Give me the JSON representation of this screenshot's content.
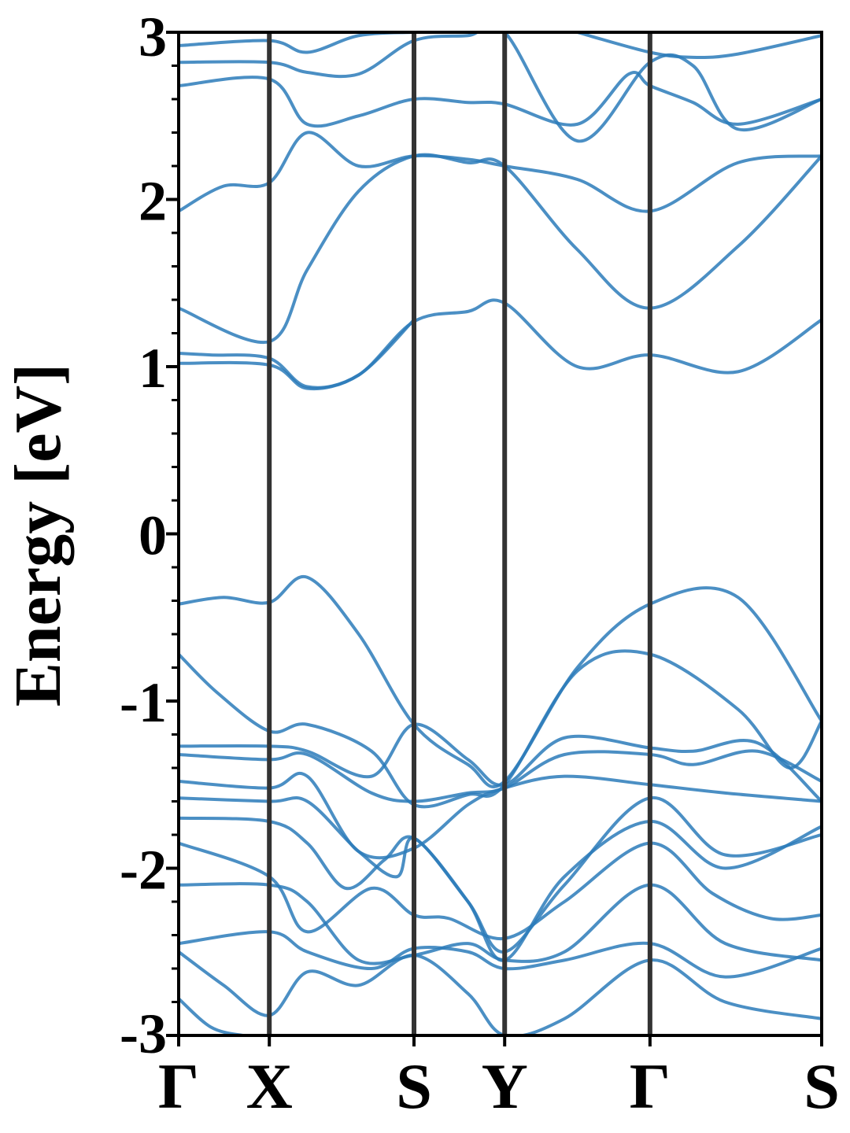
{
  "chart_data": {
    "type": "line",
    "title": "",
    "xlabel": "",
    "ylabel": "Energy [eV]",
    "ylim": [
      -3,
      3
    ],
    "grid": false,
    "line_color": "#2b7bba",
    "kpath": [
      {
        "label": "Γ",
        "x": 0.0
      },
      {
        "label": "X",
        "x": 0.141
      },
      {
        "label": "S",
        "x": 0.366
      },
      {
        "label": "Y",
        "x": 0.507
      },
      {
        "label": "Γ",
        "x": 0.733
      },
      {
        "label": "S",
        "x": 1.0
      }
    ],
    "yticks": [
      {
        "label": "3",
        "value": 3
      },
      {
        "label": "2",
        "value": 2
      },
      {
        "label": "1",
        "value": 1
      },
      {
        "label": "0",
        "value": 0
      },
      {
        "label": "-1",
        "value": -1
      },
      {
        "label": "-2",
        "value": -2
      },
      {
        "label": "-3",
        "value": -3
      }
    ],
    "series": [
      {
        "x": [
          0,
          0.07,
          0.141,
          0.2,
          0.28,
          0.366,
          0.45,
          0.507,
          0.62,
          0.733,
          0.87,
          1.0
        ],
        "y": [
          -0.42,
          -0.38,
          -0.41,
          -0.26,
          -0.6,
          -1.14,
          -1.38,
          -1.48,
          -0.8,
          -0.42,
          -0.38,
          -1.12
        ]
      },
      {
        "x": [
          0,
          0.06,
          0.141,
          0.2,
          0.3,
          0.366,
          0.45,
          0.507,
          0.62,
          0.733,
          0.87,
          0.95,
          1.0
        ],
        "y": [
          -0.72,
          -0.95,
          -1.18,
          -1.14,
          -1.3,
          -1.62,
          -1.56,
          -1.5,
          -0.82,
          -0.72,
          -1.05,
          -1.4,
          -1.12
        ]
      },
      {
        "x": [
          0,
          0.141,
          0.2,
          0.3,
          0.366,
          0.45,
          0.507,
          0.6,
          0.733,
          0.8,
          0.9,
          1.0
        ],
        "y": [
          -1.27,
          -1.27,
          -1.3,
          -1.45,
          -1.14,
          -1.35,
          -1.5,
          -1.22,
          -1.28,
          -1.3,
          -1.25,
          -1.6
        ]
      },
      {
        "x": [
          0,
          0.141,
          0.2,
          0.3,
          0.366,
          0.45,
          0.507,
          0.6,
          0.733,
          0.8,
          0.9,
          1.0
        ],
        "y": [
          -1.32,
          -1.35,
          -1.32,
          -1.55,
          -1.6,
          -1.55,
          -1.52,
          -1.32,
          -1.32,
          -1.38,
          -1.3,
          -1.48
        ]
      },
      {
        "x": [
          0,
          0.141,
          0.2,
          0.28,
          0.366,
          0.45,
          0.507,
          0.6,
          0.733,
          0.85,
          1.0
        ],
        "y": [
          -1.48,
          -1.52,
          -1.45,
          -1.9,
          -1.88,
          -1.62,
          -1.52,
          -1.45,
          -1.5,
          -1.55,
          -1.6
        ]
      },
      {
        "x": [
          0,
          0.141,
          0.2,
          0.28,
          0.34,
          0.366,
          0.45,
          0.507,
          0.6,
          0.733,
          0.85,
          1.0
        ],
        "y": [
          -1.58,
          -1.6,
          -1.6,
          -1.9,
          -2.05,
          -1.82,
          -2.2,
          -2.5,
          -2.1,
          -1.58,
          -1.92,
          -1.8
        ]
      },
      {
        "x": [
          0,
          0.141,
          0.2,
          0.26,
          0.32,
          0.366,
          0.45,
          0.507,
          0.6,
          0.733,
          0.85,
          1.0
        ],
        "y": [
          -1.7,
          -1.72,
          -1.85,
          -2.12,
          -1.95,
          -1.82,
          -2.2,
          -2.55,
          -2.05,
          -1.72,
          -2.0,
          -1.75
        ]
      },
      {
        "x": [
          0,
          0.141,
          0.2,
          0.3,
          0.366,
          0.42,
          0.507,
          0.6,
          0.733,
          0.83,
          0.92,
          1.0
        ],
        "y": [
          -1.85,
          -2.05,
          -2.38,
          -2.12,
          -2.28,
          -2.3,
          -2.42,
          -2.2,
          -1.85,
          -2.15,
          -2.3,
          -2.28
        ]
      },
      {
        "x": [
          0,
          0.141,
          0.2,
          0.28,
          0.366,
          0.45,
          0.507,
          0.6,
          0.733,
          0.85,
          1.0
        ],
        "y": [
          -2.1,
          -2.1,
          -2.2,
          -2.55,
          -2.52,
          -2.45,
          -2.55,
          -2.5,
          -2.1,
          -2.45,
          -2.55
        ]
      },
      {
        "x": [
          0,
          0.141,
          0.2,
          0.3,
          0.366,
          0.45,
          0.507,
          0.6,
          0.733,
          0.85,
          1.0
        ],
        "y": [
          -2.45,
          -2.38,
          -2.5,
          -2.6,
          -2.48,
          -2.5,
          -2.6,
          -2.55,
          -2.45,
          -2.65,
          -2.48
        ]
      },
      {
        "x": [
          0,
          0.07,
          0.141,
          0.2,
          0.28,
          0.366,
          0.45,
          0.507,
          0.6,
          0.733,
          0.85,
          1.0
        ],
        "y": [
          -2.5,
          -2.7,
          -2.88,
          -2.62,
          -2.7,
          -2.52,
          -2.75,
          -3.0,
          -2.9,
          -2.55,
          -2.8,
          -2.9
        ]
      },
      {
        "x": [
          0,
          0.05,
          0.1,
          0.13
        ],
        "y": [
          -2.78,
          -2.95,
          -3.0,
          -3.0
        ]
      },
      {
        "x": [
          0,
          0.05,
          0.141,
          0.2,
          0.28,
          0.366
        ],
        "y": [
          1.08,
          1.07,
          1.05,
          0.88,
          0.95,
          1.28
        ]
      },
      {
        "x": [
          0,
          0.141,
          0.2,
          0.28,
          0.366,
          0.45,
          0.507,
          0.62,
          0.733,
          0.87,
          1.0
        ],
        "y": [
          1.02,
          1.01,
          0.87,
          0.95,
          1.27,
          1.33,
          1.38,
          1.0,
          1.07,
          0.97,
          1.28
        ]
      },
      {
        "x": [
          0,
          0.141,
          0.2,
          0.28,
          0.366,
          0.45,
          0.507,
          0.62,
          0.733,
          0.87,
          1.0
        ],
        "y": [
          1.35,
          1.15,
          1.58,
          2.05,
          2.26,
          2.22,
          2.2,
          1.7,
          1.35,
          1.72,
          2.26
        ]
      },
      {
        "x": [
          0,
          0.07,
          0.141,
          0.2,
          0.28,
          0.366,
          0.45,
          0.507,
          0.62,
          0.733,
          0.87,
          1.0
        ],
        "y": [
          1.93,
          2.08,
          2.1,
          2.4,
          2.2,
          2.26,
          2.24,
          2.2,
          2.12,
          1.93,
          2.22,
          2.26
        ]
      },
      {
        "x": [
          0,
          0.141,
          0.2,
          0.28,
          0.366,
          0.45,
          0.507,
          0.62,
          0.7,
          0.733,
          0.8,
          0.87,
          1.0
        ],
        "y": [
          2.68,
          2.72,
          2.45,
          2.5,
          2.6,
          2.58,
          2.57,
          2.45,
          2.75,
          2.68,
          2.58,
          2.45,
          2.6
        ]
      },
      {
        "x": [
          0,
          0.141,
          0.2,
          0.28,
          0.366,
          0.45,
          0.507,
          0.62,
          0.733,
          0.8,
          0.87,
          1.0
        ],
        "y": [
          2.82,
          2.82,
          2.76,
          2.75,
          2.95,
          2.98,
          3.0,
          2.35,
          2.82,
          2.8,
          2.42,
          2.6
        ]
      },
      {
        "x": [
          0,
          0.141,
          0.2,
          0.28,
          0.366,
          0.42
        ],
        "y": [
          2.92,
          2.95,
          2.88,
          2.98,
          3.0,
          3.0
        ]
      },
      {
        "x": [
          0.62,
          0.733,
          0.8,
          0.87,
          1.0
        ],
        "y": [
          3.0,
          2.88,
          2.85,
          2.87,
          2.98
        ]
      }
    ]
  }
}
